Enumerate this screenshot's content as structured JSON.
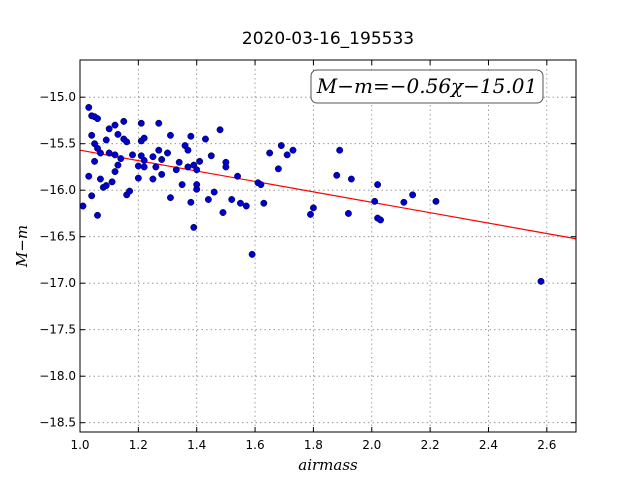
{
  "chart_data": {
    "type": "scatter",
    "title": "2020-03-16_195533",
    "xlabel": "airmass",
    "ylabel": "M−m",
    "xlim": [
      1.0,
      2.7
    ],
    "ylim": [
      -18.6,
      -14.6
    ],
    "grid": true,
    "x_ticks": [
      1.0,
      1.2,
      1.4,
      1.6,
      1.8,
      2.0,
      2.2,
      2.4,
      2.6
    ],
    "x_tick_labels": [
      "1.0",
      "1.2",
      "1.4",
      "1.6",
      "1.8",
      "2.0",
      "2.2",
      "2.4",
      "2.6"
    ],
    "y_ticks": [
      -15.0,
      -15.5,
      -16.0,
      -16.5,
      -17.0,
      -17.5,
      -18.0,
      -18.5
    ],
    "y_tick_labels": [
      "−15.0",
      "−15.5",
      "−16.0",
      "−16.5",
      "−17.0",
      "−17.5",
      "−18.0",
      "−18.5"
    ],
    "annotation": "M−m=−0.56χ−15.01",
    "colors": {
      "points": "#0000cc",
      "fit": "#ff0000"
    },
    "fit_line": {
      "slope": -0.56,
      "intercept": -15.01
    },
    "points": [
      [
        1.01,
        -16.17
      ],
      [
        1.03,
        -15.11
      ],
      [
        1.04,
        -15.2
      ],
      [
        1.05,
        -15.21
      ],
      [
        1.06,
        -15.23
      ],
      [
        1.04,
        -15.41
      ],
      [
        1.05,
        -15.5
      ],
      [
        1.06,
        -15.55
      ],
      [
        1.07,
        -15.6
      ],
      [
        1.03,
        -15.85
      ],
      [
        1.04,
        -16.06
      ],
      [
        1.05,
        -15.69
      ],
      [
        1.06,
        -16.27
      ],
      [
        1.07,
        -15.88
      ],
      [
        1.08,
        -15.97
      ],
      [
        1.09,
        -15.95
      ],
      [
        1.09,
        -15.46
      ],
      [
        1.1,
        -15.6
      ],
      [
        1.1,
        -15.34
      ],
      [
        1.11,
        -15.91
      ],
      [
        1.12,
        -15.3
      ],
      [
        1.12,
        -15.62
      ],
      [
        1.12,
        -15.8
      ],
      [
        1.13,
        -15.73
      ],
      [
        1.13,
        -15.4
      ],
      [
        1.14,
        -15.66
      ],
      [
        1.15,
        -15.26
      ],
      [
        1.15,
        -15.45
      ],
      [
        1.16,
        -15.48
      ],
      [
        1.16,
        -16.05
      ],
      [
        1.17,
        -16.01
      ],
      [
        1.18,
        -15.62
      ],
      [
        1.2,
        -15.74
      ],
      [
        1.21,
        -15.28
      ],
      [
        1.21,
        -15.47
      ],
      [
        1.21,
        -15.63
      ],
      [
        1.22,
        -15.68
      ],
      [
        1.22,
        -15.75
      ],
      [
        1.22,
        -15.44
      ],
      [
        1.2,
        -15.87
      ],
      [
        1.25,
        -15.88
      ],
      [
        1.25,
        -15.64
      ],
      [
        1.26,
        -15.75
      ],
      [
        1.27,
        -15.28
      ],
      [
        1.27,
        -15.57
      ],
      [
        1.28,
        -15.67
      ],
      [
        1.28,
        -15.83
      ],
      [
        1.3,
        -15.6
      ],
      [
        1.31,
        -15.41
      ],
      [
        1.31,
        -16.08
      ],
      [
        1.33,
        -15.78
      ],
      [
        1.34,
        -15.7
      ],
      [
        1.35,
        -15.94
      ],
      [
        1.36,
        -15.52
      ],
      [
        1.37,
        -15.57
      ],
      [
        1.37,
        -15.75
      ],
      [
        1.38,
        -15.42
      ],
      [
        1.38,
        -16.13
      ],
      [
        1.39,
        -15.73
      ],
      [
        1.39,
        -16.4
      ],
      [
        1.4,
        -15.78
      ],
      [
        1.4,
        -15.94
      ],
      [
        1.4,
        -15.99
      ],
      [
        1.41,
        -15.69
      ],
      [
        1.43,
        -15.45
      ],
      [
        1.44,
        -16.1
      ],
      [
        1.45,
        -15.63
      ],
      [
        1.46,
        -16.02
      ],
      [
        1.48,
        -15.35
      ],
      [
        1.49,
        -16.24
      ],
      [
        1.5,
        -15.7
      ],
      [
        1.5,
        -15.75
      ],
      [
        1.52,
        -16.1
      ],
      [
        1.54,
        -15.85
      ],
      [
        1.55,
        -16.14
      ],
      [
        1.57,
        -16.17
      ],
      [
        1.59,
        -16.69
      ],
      [
        1.61,
        -15.92
      ],
      [
        1.62,
        -15.94
      ],
      [
        1.63,
        -16.14
      ],
      [
        1.65,
        -15.6
      ],
      [
        1.68,
        -15.77
      ],
      [
        1.69,
        -15.52
      ],
      [
        1.71,
        -15.62
      ],
      [
        1.73,
        -15.57
      ],
      [
        1.79,
        -16.26
      ],
      [
        1.8,
        -16.19
      ],
      [
        1.88,
        -15.84
      ],
      [
        1.89,
        -15.57
      ],
      [
        1.92,
        -16.25
      ],
      [
        1.93,
        -15.88
      ],
      [
        2.01,
        -16.12
      ],
      [
        2.02,
        -15.94
      ],
      [
        2.02,
        -16.3
      ],
      [
        2.03,
        -16.32
      ],
      [
        2.11,
        -16.13
      ],
      [
        2.14,
        -16.05
      ],
      [
        2.22,
        -16.12
      ],
      [
        2.58,
        -16.98
      ]
    ]
  }
}
